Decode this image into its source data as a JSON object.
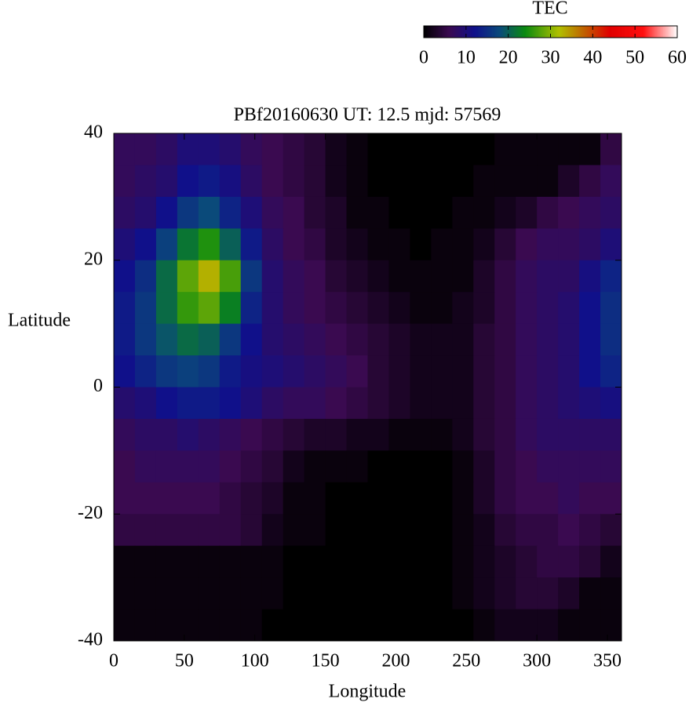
{
  "chart_data": {
    "type": "heatmap",
    "title": "PBf20160630  UT: 12.5  mjd: 57569",
    "xlabel": "Longitude",
    "ylabel": "Latitude",
    "colorbar_label": "TEC",
    "xlim": [
      0,
      360
    ],
    "ylim": [
      -40,
      40
    ],
    "xticks": [
      0,
      50,
      100,
      150,
      200,
      250,
      300,
      350
    ],
    "yticks": [
      -40,
      -20,
      0,
      20,
      40
    ],
    "zlim": [
      0,
      60
    ],
    "zticks": [
      0,
      10,
      20,
      30,
      40,
      50,
      60
    ],
    "colorscale": [
      [
        0,
        "#000000"
      ],
      [
        6,
        "#3a0a50"
      ],
      [
        12,
        "#10108a"
      ],
      [
        18,
        "#0a4a7a"
      ],
      [
        24,
        "#0a8a10"
      ],
      [
        32,
        "#b0c000"
      ],
      [
        38,
        "#c06000"
      ],
      [
        44,
        "#e00000"
      ],
      [
        52,
        "#ff1010"
      ],
      [
        60,
        "#ffffff"
      ]
    ],
    "x": [
      7.5,
      22.5,
      37.5,
      52.5,
      67.5,
      82.5,
      97.5,
      112.5,
      127.5,
      142.5,
      157.5,
      172.5,
      187.5,
      202.5,
      217.5,
      232.5,
      247.5,
      262.5,
      277.5,
      292.5,
      307.5,
      322.5,
      337.5,
      352.5
    ],
    "y": [
      37.5,
      32.5,
      27.5,
      22.5,
      17.5,
      12.5,
      7.5,
      2.5,
      -2.5,
      -7.5,
      -12.5,
      -17.5,
      -22.5,
      -27.5,
      -32.5,
      -37.5
    ],
    "values": [
      [
        7,
        7,
        8,
        10,
        10,
        9,
        7,
        6,
        5,
        4,
        2,
        1,
        0,
        0,
        0,
        0,
        0,
        0,
        1,
        1,
        1,
        1,
        1,
        5
      ],
      [
        7,
        8,
        9,
        12,
        13,
        11,
        8,
        6,
        5,
        4,
        2,
        1,
        0,
        0,
        0,
        0,
        0,
        1,
        1,
        1,
        1,
        3,
        5,
        7
      ],
      [
        8,
        9,
        12,
        16,
        18,
        14,
        10,
        7,
        6,
        4,
        3,
        1,
        1,
        0,
        0,
        0,
        1,
        1,
        2,
        3,
        5,
        6,
        7,
        8
      ],
      [
        10,
        12,
        17,
        22,
        25,
        20,
        13,
        8,
        6,
        5,
        3,
        2,
        1,
        1,
        0,
        1,
        1,
        2,
        4,
        6,
        7,
        7,
        8,
        10
      ],
      [
        12,
        15,
        21,
        28,
        33,
        27,
        16,
        9,
        7,
        6,
        4,
        3,
        2,
        1,
        1,
        1,
        1,
        3,
        5,
        7,
        8,
        8,
        11,
        14
      ],
      [
        13,
        16,
        21,
        26,
        28,
        23,
        14,
        9,
        7,
        6,
        5,
        4,
        3,
        2,
        1,
        1,
        2,
        3,
        5,
        7,
        8,
        9,
        12,
        15
      ],
      [
        13,
        16,
        19,
        21,
        20,
        16,
        12,
        9,
        8,
        7,
        6,
        5,
        4,
        3,
        2,
        2,
        2,
        4,
        5,
        7,
        8,
        9,
        12,
        15
      ],
      [
        12,
        14,
        16,
        17,
        16,
        13,
        11,
        10,
        9,
        8,
        7,
        6,
        4,
        3,
        2,
        2,
        2,
        4,
        5,
        7,
        8,
        9,
        12,
        14
      ],
      [
        9,
        10,
        12,
        13,
        13,
        12,
        10,
        8,
        7,
        7,
        6,
        5,
        4,
        3,
        2,
        2,
        2,
        4,
        5,
        7,
        8,
        9,
        10,
        11
      ],
      [
        7,
        8,
        8,
        9,
        8,
        7,
        6,
        5,
        4,
        3,
        3,
        2,
        2,
        1,
        1,
        1,
        2,
        4,
        5,
        7,
        8,
        8,
        8,
        8
      ],
      [
        6,
        7,
        7,
        7,
        7,
        6,
        5,
        4,
        2,
        1,
        1,
        1,
        0,
        0,
        0,
        0,
        1,
        3,
        5,
        6,
        7,
        7,
        7,
        7
      ],
      [
        6,
        6,
        6,
        6,
        6,
        5,
        4,
        3,
        1,
        1,
        0,
        0,
        0,
        0,
        0,
        0,
        1,
        3,
        5,
        6,
        6,
        7,
        6,
        6
      ],
      [
        5,
        5,
        5,
        5,
        5,
        5,
        4,
        2,
        1,
        1,
        0,
        0,
        0,
        0,
        0,
        0,
        1,
        2,
        4,
        5,
        5,
        6,
        5,
        4
      ],
      [
        1,
        1,
        1,
        1,
        1,
        1,
        1,
        1,
        0,
        0,
        0,
        0,
        0,
        0,
        0,
        0,
        1,
        2,
        3,
        4,
        5,
        5,
        4,
        2
      ],
      [
        1,
        1,
        1,
        1,
        1,
        1,
        1,
        1,
        0,
        0,
        0,
        0,
        0,
        0,
        0,
        0,
        1,
        2,
        3,
        4,
        4,
        3,
        1,
        1
      ],
      [
        1,
        1,
        1,
        1,
        1,
        1,
        1,
        0,
        0,
        0,
        0,
        0,
        0,
        0,
        0,
        0,
        0,
        1,
        2,
        2,
        2,
        1,
        1,
        1
      ]
    ]
  }
}
